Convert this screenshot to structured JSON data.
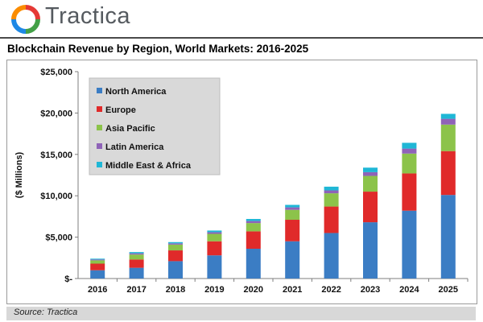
{
  "brand": {
    "name": "Tractica"
  },
  "footer": {
    "source": "Source: Tractica"
  },
  "chart_data": {
    "type": "bar",
    "stacked": true,
    "title": "Blockchain Revenue by Region, World Markets: 2016-2025",
    "ylabel": "($ Millions)",
    "xlabel": "",
    "categories": [
      "2016",
      "2017",
      "2018",
      "2019",
      "2020",
      "2021",
      "2022",
      "2023",
      "2024",
      "2025"
    ],
    "yticks": [
      "$-",
      "$5,000",
      "$10,000",
      "$15,000",
      "$20,000",
      "$25,000"
    ],
    "ylim": [
      0,
      25000
    ],
    "grid": false,
    "legend_position": "top-left",
    "series": [
      {
        "name": "North America",
        "color": "#3b7dc4",
        "values": [
          1000,
          1300,
          2100,
          2800,
          3600,
          4500,
          5500,
          6800,
          8200,
          10100
        ]
      },
      {
        "name": "Europe",
        "color": "#e02a2a",
        "values": [
          800,
          1000,
          1300,
          1700,
          2100,
          2600,
          3200,
          3700,
          4500,
          5300
        ]
      },
      {
        "name": "Asia Pacific",
        "color": "#8cc34a",
        "values": [
          400,
          600,
          700,
          900,
          1000,
          1200,
          1600,
          1900,
          2400,
          3200
        ]
      },
      {
        "name": "Latin America",
        "color": "#8f63b8",
        "values": [
          100,
          150,
          150,
          200,
          250,
          300,
          350,
          450,
          600,
          700
        ]
      },
      {
        "name": "Middle East & Africa",
        "color": "#1fb7d6",
        "values": [
          100,
          150,
          150,
          200,
          250,
          300,
          450,
          550,
          700,
          600
        ]
      }
    ]
  }
}
